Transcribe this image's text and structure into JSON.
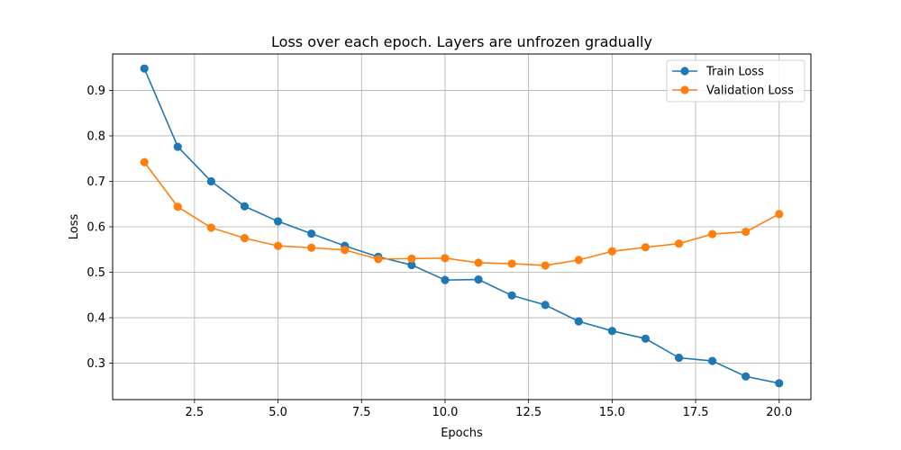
{
  "chart_data": {
    "type": "line",
    "title": "Loss over each epoch. Layers are unfrozen gradually",
    "xlabel": "Epochs",
    "ylabel": "Loss",
    "xlim": [
      0.05,
      20.95
    ],
    "ylim": [
      0.22,
      0.98
    ],
    "x_ticks": [
      2.5,
      5.0,
      7.5,
      10.0,
      12.5,
      15.0,
      17.5,
      20.0
    ],
    "x_tick_labels": [
      "2.5",
      "5.0",
      "7.5",
      "10.0",
      "12.5",
      "15.0",
      "17.5",
      "20.0"
    ],
    "y_ticks": [
      0.3,
      0.4,
      0.5,
      0.6,
      0.7,
      0.8,
      0.9
    ],
    "y_tick_labels": [
      "0.3",
      "0.4",
      "0.5",
      "0.6",
      "0.7",
      "0.8",
      "0.9"
    ],
    "grid": true,
    "legend_position": "top-right",
    "x": [
      1,
      2,
      3,
      4,
      5,
      6,
      7,
      8,
      9,
      10,
      11,
      12,
      13,
      14,
      15,
      16,
      17,
      18,
      19,
      20
    ],
    "series": [
      {
        "name": "Train Loss",
        "color": "#1f77b4",
        "values": [
          0.948,
          0.776,
          0.7,
          0.645,
          0.612,
          0.585,
          0.558,
          0.534,
          0.516,
          0.483,
          0.484,
          0.449,
          0.428,
          0.392,
          0.371,
          0.354,
          0.312,
          0.305,
          0.271,
          0.256
        ]
      },
      {
        "name": "Validation Loss",
        "color": "#ff7f0e",
        "values": [
          0.742,
          0.644,
          0.598,
          0.575,
          0.558,
          0.554,
          0.549,
          0.529,
          0.53,
          0.531,
          0.521,
          0.519,
          0.515,
          0.527,
          0.546,
          0.555,
          0.563,
          0.584,
          0.589,
          0.628
        ]
      }
    ]
  }
}
